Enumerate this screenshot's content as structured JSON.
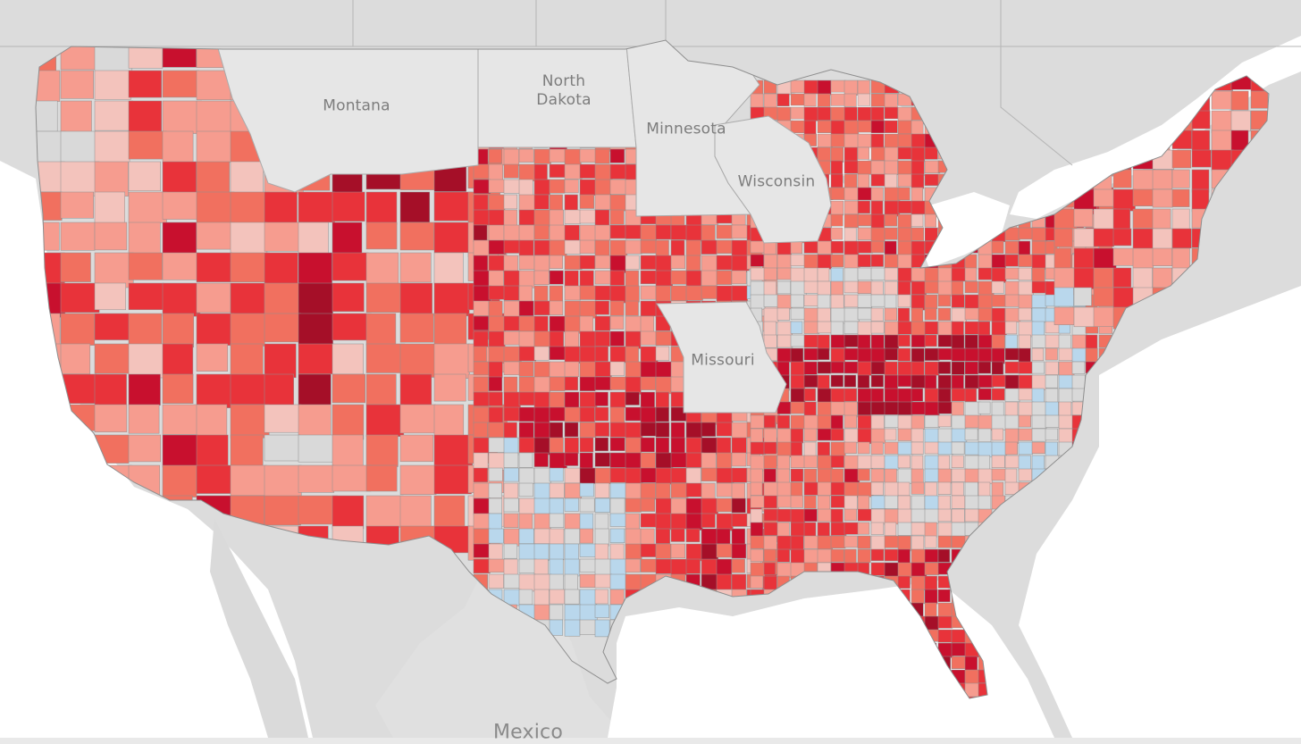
{
  "map": {
    "state_labels": {
      "montana": "Montana",
      "north_dakota": "North\nDakota",
      "minnesota": "Minnesota",
      "wisconsin": "Wisconsin",
      "missouri": "Missouri"
    },
    "country_labels": {
      "mexico": "Mexico"
    },
    "excluded_states": [
      "Montana",
      "North Dakota",
      "Minnesota",
      "Wisconsin",
      "Missouri"
    ],
    "palette": {
      "background_land": "#dcdcdc",
      "water": "#ffffff",
      "no_data_state": "#e6e6e6",
      "border": "#9a9a9a",
      "diverging_scale": [
        "#0d5a9e",
        "#4f8fc4",
        "#8ec0e4",
        "#b9d7ec",
        "#d9d9d9",
        "#f3c3bc",
        "#f69c8f",
        "#f1705f",
        "#e8333a",
        "#c8102e",
        "#a50f28"
      ]
    }
  }
}
